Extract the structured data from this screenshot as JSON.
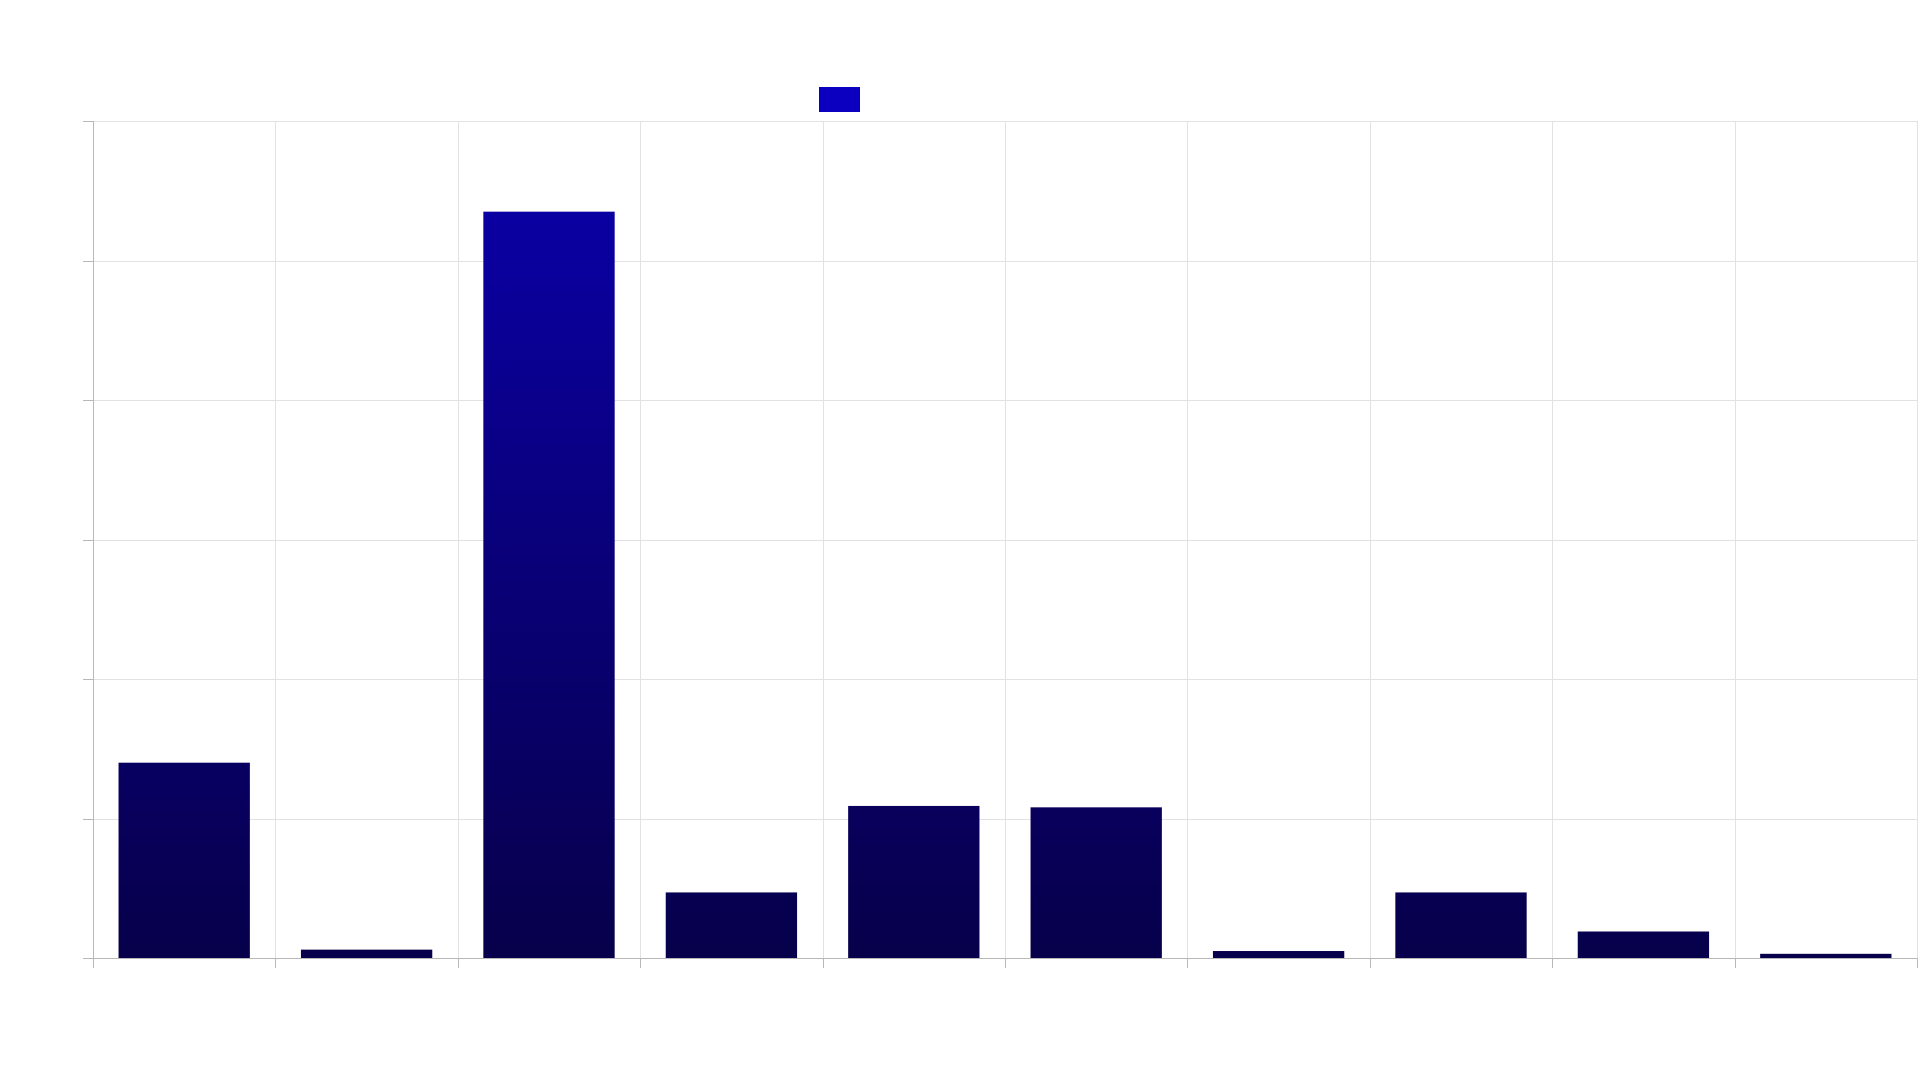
{
  "chart_data": {
    "type": "bar",
    "title": "",
    "xlabel": "",
    "ylabel": "",
    "categories": [
      "",
      "",
      "",
      "",
      "",
      "",
      "",
      "",
      "",
      ""
    ],
    "series": [
      {
        "values": [
          14,
          0.6,
          53.5,
          4.7,
          10.9,
          10.8,
          0.5,
          4.7,
          1.9,
          0.3
        ]
      }
    ],
    "ylim": [
      0,
      60
    ],
    "y_ticks": [
      0,
      10,
      20,
      30,
      40,
      50,
      60
    ],
    "grid": true,
    "legend": {
      "placement": "top-center",
      "show_label": false
    },
    "colors": {
      "bar_top": "#0b00ad",
      "bar_bottom": "#07004a",
      "legend_swatch": "#0b00c0",
      "grid": "#e2e2e2",
      "axis": "#b8b8b8"
    }
  }
}
